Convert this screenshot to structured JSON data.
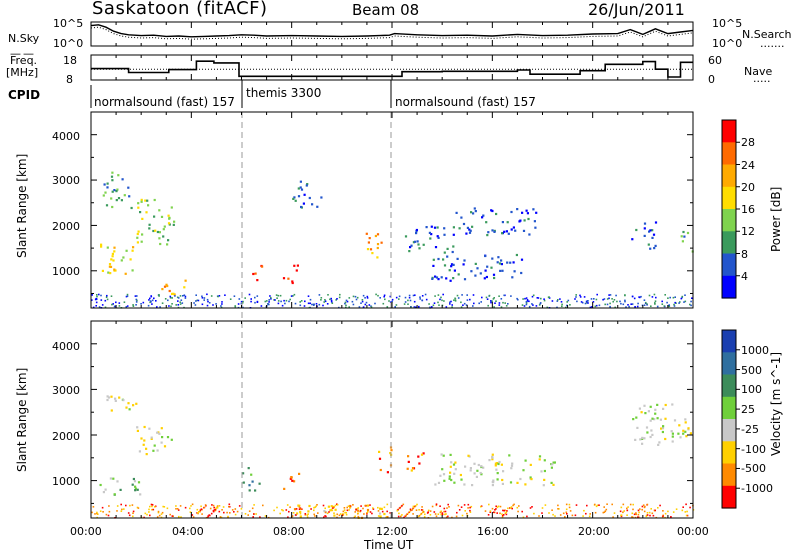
{
  "header": {
    "title": "Saskatoon (fitACF)",
    "beam": "Beam 08",
    "date": "26/Jun/2011"
  },
  "nsky_panel": {
    "left_label": "N.Sky",
    "right_label": "N.Search",
    "left_ticks": [
      "10^5",
      "10^0"
    ],
    "right_ticks": [
      "10^5",
      "10^0"
    ]
  },
  "freq_panel": {
    "left_label_1": "Freq.",
    "left_label_2": "[MHz]",
    "right_label": "Nave",
    "left_ticks": [
      "18",
      "8"
    ],
    "right_ticks": [
      "60",
      "0"
    ]
  },
  "cpid_panel": {
    "label": "CPID",
    "segments": [
      {
        "start_hour": 0,
        "text": "normalsound (fast) 157"
      },
      {
        "start_hour": 5.95,
        "text": "themis 3300"
      },
      {
        "start_hour": 11.95,
        "text": "normalsound (fast) 157"
      }
    ]
  },
  "power_panel": {
    "ylabel": "Slant Range [km]",
    "yticks": [
      "1000",
      "2000",
      "3000",
      "4000"
    ],
    "colorbar_label": "Power [dB]",
    "colorbar_ticks": [
      "28",
      "24",
      "20",
      "16",
      "12",
      "8",
      "4"
    ],
    "colors": [
      "#ff0000",
      "#ff6a00",
      "#ffaa00",
      "#ffdd00",
      "#7fd34e",
      "#3a9a5c",
      "#2255cc",
      "#0000ff"
    ]
  },
  "velocity_panel": {
    "ylabel": "Slant Range [km]",
    "yticks": [
      "1000",
      "2000",
      "3000",
      "4000"
    ],
    "colorbar_label": "Velocity [m s^-1]",
    "colorbar_ticks": [
      "1000",
      "500",
      "100",
      "25",
      "-25",
      "-100",
      "-500",
      "-1000"
    ],
    "colors": [
      "#1a3fb0",
      "#2f6f9f",
      "#3c8c5a",
      "#6fcf3a",
      "#c8c8c8",
      "#ffd000",
      "#ff8a00",
      "#ff0000"
    ]
  },
  "x_axis": {
    "label": "Time UT",
    "ticks": [
      "00:00",
      "04:00",
      "08:00",
      "12:00",
      "16:00",
      "20:00",
      "00:00"
    ]
  },
  "chart_data": [
    {
      "type": "line",
      "name": "N.Sky / N.Search",
      "x": [
        0,
        0.3,
        0.6,
        0.9,
        1.2,
        1.5,
        2,
        2.5,
        3,
        3.5,
        4,
        4.5,
        5,
        5.5,
        6,
        6.5,
        7,
        8,
        9,
        10,
        11,
        11.9,
        12.1,
        13,
        14,
        15,
        16,
        17,
        18,
        19,
        20,
        21,
        21.5,
        22,
        22.5,
        23,
        23.5,
        24
      ],
      "y_nsky": [
        4.6,
        4.8,
        4.2,
        3.2,
        2.6,
        2.3,
        2.1,
        2.2,
        1.9,
        2.0,
        1.8,
        1.9,
        2.0,
        2.1,
        2.3,
        2.2,
        2.0,
        2.1,
        2.0,
        1.9,
        2.0,
        2.2,
        2.6,
        2.3,
        2.1,
        2.2,
        2.0,
        2.4,
        2.1,
        2.2,
        2.5,
        2.6,
        3.6,
        2.4,
        3.8,
        2.6,
        3.0,
        3.4
      ],
      "ylim": [
        0,
        5
      ]
    },
    {
      "type": "line",
      "name": "Freq / Nave",
      "freq_steps": [
        [
          0,
          12.5
        ],
        [
          1.5,
          10.6
        ],
        [
          3.1,
          12.0
        ],
        [
          4.2,
          16.0
        ],
        [
          4.9,
          15.2
        ],
        [
          5.9,
          8.8
        ],
        [
          11.9,
          8.8
        ],
        [
          12.4,
          11.0
        ],
        [
          14,
          11.2
        ],
        [
          17,
          11.8
        ],
        [
          17.5,
          9.8
        ],
        [
          19.5,
          11.5
        ],
        [
          20.5,
          14.5
        ],
        [
          22,
          15.8
        ],
        [
          22.5,
          12.2
        ],
        [
          23,
          8.5
        ],
        [
          23.5,
          15.5
        ],
        [
          24,
          15.5
        ]
      ],
      "nave_level": 25,
      "freq_ylim": [
        8,
        18
      ],
      "nave_ylim": [
        0,
        60
      ]
    },
    {
      "type": "heatmap",
      "name": "Power",
      "x_range_hours": [
        0,
        24
      ],
      "y_range_km": [
        180,
        4500
      ],
      "blobs": [
        {
          "t": [
            0.3,
            1.8
          ],
          "r": [
            900,
            1600
          ],
          "level": 3
        },
        {
          "t": [
            1.8,
            3.3
          ],
          "r": [
            1500,
            2600
          ],
          "level": 4
        },
        {
          "t": [
            0.4,
            1.6
          ],
          "r": [
            2400,
            3200
          ],
          "level": 5
        },
        {
          "t": [
            2.8,
            3.8
          ],
          "r": [
            500,
            900
          ],
          "level": 2
        },
        {
          "t": [
            6.3,
            6.8
          ],
          "r": [
            800,
            1200
          ],
          "level": 0
        },
        {
          "t": [
            7.6,
            8.3
          ],
          "r": [
            750,
            1150
          ],
          "level": 0
        },
        {
          "t": [
            8.0,
            9.2
          ],
          "r": [
            2400,
            3000
          ],
          "level": 6
        },
        {
          "t": [
            10.8,
            11.6
          ],
          "r": [
            1300,
            1900
          ],
          "level": 2
        },
        {
          "t": [
            12.4,
            14.5
          ],
          "r": [
            1400,
            2000
          ],
          "level": 6
        },
        {
          "t": [
            13.5,
            17.2
          ],
          "r": [
            800,
            1400
          ],
          "level": 6
        },
        {
          "t": [
            14.5,
            17.8
          ],
          "r": [
            1800,
            2400
          ],
          "level": 6
        },
        {
          "t": [
            21.5,
            22.5
          ],
          "r": [
            1500,
            2100
          ],
          "level": 6
        },
        {
          "t": [
            23.5,
            24.0
          ],
          "r": [
            1400,
            1900
          ],
          "level": 5
        }
      ]
    },
    {
      "type": "heatmap",
      "name": "Velocity",
      "x_range_hours": [
        0,
        24
      ],
      "y_range_km": [
        180,
        4500
      ],
      "blobs": [
        {
          "t": [
            0.2,
            2.0
          ],
          "r": [
            700,
            1100
          ],
          "level": 3
        },
        {
          "t": [
            1.6,
            3.2
          ],
          "r": [
            1600,
            2200
          ],
          "level": 4
        },
        {
          "t": [
            0.6,
            1.8
          ],
          "r": [
            2400,
            2900
          ],
          "level": 4
        },
        {
          "t": [
            6.0,
            6.7
          ],
          "r": [
            800,
            1300
          ],
          "level": 2
        },
        {
          "t": [
            7.6,
            8.3
          ],
          "r": [
            800,
            1200
          ],
          "level": 6
        },
        {
          "t": [
            11.4,
            12.0
          ],
          "r": [
            1200,
            1800
          ],
          "level": 6
        },
        {
          "t": [
            12.5,
            13.3
          ],
          "r": [
            1200,
            1700
          ],
          "level": 6
        },
        {
          "t": [
            13.5,
            18.5
          ],
          "r": [
            900,
            1600
          ],
          "level": 4
        },
        {
          "t": [
            8.0,
            12.0
          ],
          "r": [
            200,
            500
          ],
          "level": 5
        },
        {
          "t": [
            21.5,
            24.0
          ],
          "r": [
            1800,
            2700
          ],
          "level": 4
        }
      ]
    }
  ]
}
